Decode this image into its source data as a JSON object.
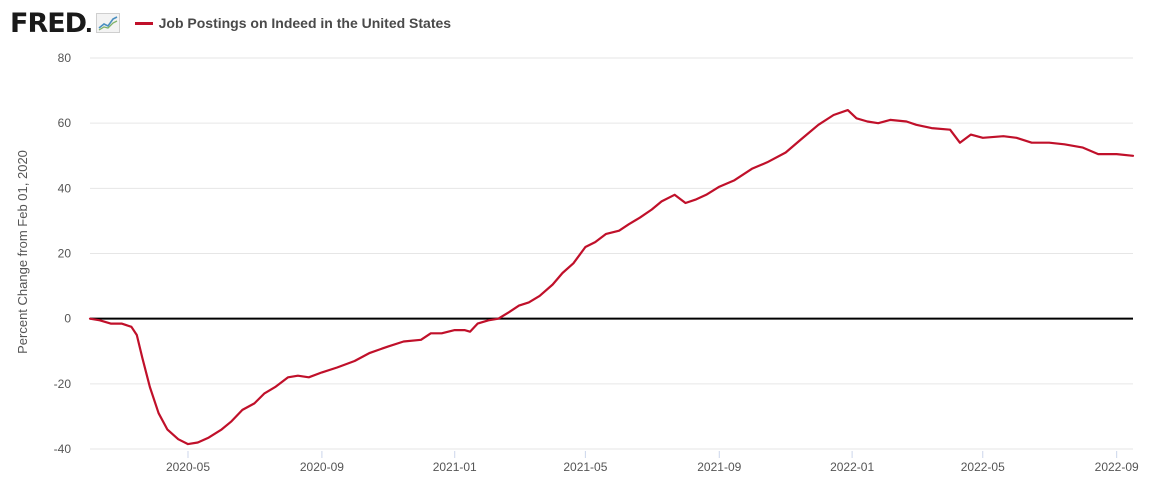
{
  "header": {
    "logo_text": "FRED",
    "logo_mark": "®",
    "icon": "line-chart-icon",
    "legend_label": "Job Postings on Indeed in the United States"
  },
  "colors": {
    "series": "#c0102a",
    "zero_line": "#000000",
    "grid": "#e6e6e6",
    "text": "#555555"
  },
  "chart_data": {
    "type": "line",
    "title": "",
    "ylabel": "Percent Change from Feb 01, 2020",
    "xlabel": "",
    "ylim": [
      -40,
      80
    ],
    "yticks": [
      -40,
      -20,
      0,
      20,
      40,
      60,
      80
    ],
    "xrange": [
      "2020-02-01",
      "2022-09-16"
    ],
    "xticks": [
      "2020-05",
      "2020-09",
      "2021-01",
      "2021-05",
      "2021-09",
      "2022-01",
      "2022-05",
      "2022-09"
    ],
    "grid": true,
    "legend": "top-left",
    "series": [
      {
        "name": "Job Postings on Indeed in the United States",
        "points": [
          [
            "2020-02-01",
            0
          ],
          [
            "2020-02-10",
            -0.5
          ],
          [
            "2020-02-20",
            -1.5
          ],
          [
            "2020-03-01",
            -1.5
          ],
          [
            "2020-03-10",
            -2.5
          ],
          [
            "2020-03-15",
            -5
          ],
          [
            "2020-03-20",
            -12
          ],
          [
            "2020-03-27",
            -21
          ],
          [
            "2020-04-04",
            -29
          ],
          [
            "2020-04-12",
            -34
          ],
          [
            "2020-04-22",
            -37
          ],
          [
            "2020-05-01",
            -38.5
          ],
          [
            "2020-05-10",
            -38
          ],
          [
            "2020-05-20",
            -36.5
          ],
          [
            "2020-06-01",
            -34
          ],
          [
            "2020-06-10",
            -31.5
          ],
          [
            "2020-06-20",
            -28
          ],
          [
            "2020-07-01",
            -26
          ],
          [
            "2020-07-10",
            -23
          ],
          [
            "2020-07-20",
            -21
          ],
          [
            "2020-08-01",
            -18
          ],
          [
            "2020-08-10",
            -17.5
          ],
          [
            "2020-08-20",
            -18
          ],
          [
            "2020-09-01",
            -16.5
          ],
          [
            "2020-09-15",
            -15
          ],
          [
            "2020-10-01",
            -13
          ],
          [
            "2020-10-15",
            -10.5
          ],
          [
            "2020-11-01",
            -8.5
          ],
          [
            "2020-11-15",
            -7
          ],
          [
            "2020-12-01",
            -6.5
          ],
          [
            "2020-12-10",
            -4.5
          ],
          [
            "2020-12-20",
            -4.5
          ],
          [
            "2021-01-01",
            -3.5
          ],
          [
            "2021-01-10",
            -3.5
          ],
          [
            "2021-01-15",
            -4
          ],
          [
            "2021-01-22",
            -1.5
          ],
          [
            "2021-02-01",
            -0.5
          ],
          [
            "2021-02-10",
            0
          ],
          [
            "2021-02-20",
            2
          ],
          [
            "2021-03-01",
            4
          ],
          [
            "2021-03-10",
            5
          ],
          [
            "2021-03-20",
            7
          ],
          [
            "2021-04-01",
            10.5
          ],
          [
            "2021-04-10",
            14
          ],
          [
            "2021-04-20",
            17
          ],
          [
            "2021-05-01",
            22
          ],
          [
            "2021-05-10",
            23.5
          ],
          [
            "2021-05-20",
            26
          ],
          [
            "2021-06-01",
            27
          ],
          [
            "2021-06-10",
            29
          ],
          [
            "2021-06-20",
            31
          ],
          [
            "2021-07-01",
            33.5
          ],
          [
            "2021-07-10",
            36
          ],
          [
            "2021-07-22",
            38
          ],
          [
            "2021-08-01",
            35.5
          ],
          [
            "2021-08-10",
            36.5
          ],
          [
            "2021-08-20",
            38
          ],
          [
            "2021-09-01",
            40.5
          ],
          [
            "2021-09-15",
            42.5
          ],
          [
            "2021-10-01",
            46
          ],
          [
            "2021-10-15",
            48
          ],
          [
            "2021-11-01",
            51
          ],
          [
            "2021-11-15",
            55
          ],
          [
            "2021-12-01",
            59.5
          ],
          [
            "2021-12-15",
            62.5
          ],
          [
            "2021-12-28",
            64
          ],
          [
            "2022-01-05",
            61.5
          ],
          [
            "2022-01-15",
            60.5
          ],
          [
            "2022-01-25",
            60
          ],
          [
            "2022-02-05",
            61
          ],
          [
            "2022-02-20",
            60.5
          ],
          [
            "2022-03-01",
            59.5
          ],
          [
            "2022-03-15",
            58.5
          ],
          [
            "2022-04-01",
            58
          ],
          [
            "2022-04-10",
            54
          ],
          [
            "2022-04-20",
            56.5
          ],
          [
            "2022-05-01",
            55.5
          ],
          [
            "2022-05-20",
            56
          ],
          [
            "2022-06-01",
            55.5
          ],
          [
            "2022-06-15",
            54
          ],
          [
            "2022-07-01",
            54
          ],
          [
            "2022-07-15",
            53.5
          ],
          [
            "2022-08-01",
            52.5
          ],
          [
            "2022-08-15",
            50.5
          ],
          [
            "2022-09-01",
            50.5
          ],
          [
            "2022-09-16",
            50
          ]
        ]
      }
    ]
  }
}
